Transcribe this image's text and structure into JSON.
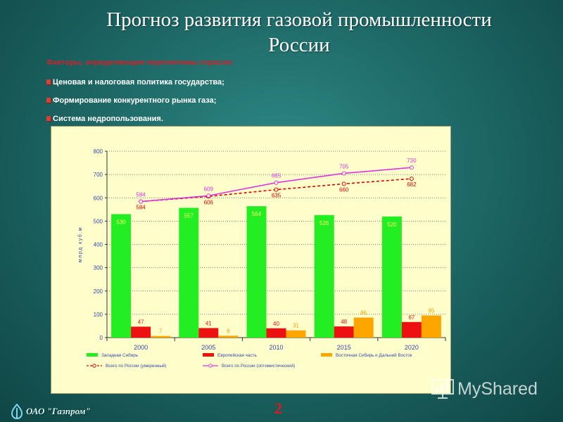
{
  "slide": {
    "title": "Прогноз развития газовой промышленности\nРоссии",
    "factors_heading": "Факторы, определяющие перспективы отрасли:",
    "bullets": [
      "Ценовая  и налоговая  политика государства;",
      "Формирование  конкурентного  рынка газа;",
      "Система  недропользования."
    ],
    "page_number": "2",
    "logo_text": "ОАО \"Газпром\"",
    "watermark_text": "MyShared"
  },
  "colors": {
    "west_siberia": "#22ee22",
    "european_part": "#ee1111",
    "east_siberia": "#ffa500",
    "total_moderate": "#dd0000",
    "total_optimistic": "#dd33dd",
    "chart_bg": "#ffffcc"
  },
  "chart_data": {
    "type": "bar",
    "categories": [
      "2000",
      "2005",
      "2010",
      "2015",
      "2020"
    ],
    "ylabel": "млрд куб.м",
    "ylim": [
      0,
      800
    ],
    "yticks": [
      0,
      100,
      200,
      300,
      400,
      500,
      600,
      700,
      800
    ],
    "grid": "horizontal dotted",
    "legend_position": "bottom",
    "series": [
      {
        "name": "Западная Сибирь",
        "type": "bar",
        "color": "#22ee22",
        "values": [
          530,
          557,
          564,
          526,
          520
        ]
      },
      {
        "name": "Европейская часть",
        "type": "bar",
        "color": "#ee1111",
        "values": [
          47,
          41,
          40,
          48,
          67
        ]
      },
      {
        "name": "Восточная Сибирь и Дальний Восток",
        "type": "bar",
        "color": "#ffa500",
        "values": [
          7,
          8,
          31,
          86,
          95
        ]
      },
      {
        "name": "Всего по России (умеренный)",
        "type": "line",
        "style": "dashed",
        "color": "#dd0000",
        "values": [
          584,
          606,
          635,
          660,
          682
        ]
      },
      {
        "name": "Всего по России (оптимистический)",
        "type": "line",
        "style": "solid",
        "color": "#dd33dd",
        "values": [
          584,
          609,
          665,
          705,
          730
        ]
      }
    ]
  }
}
